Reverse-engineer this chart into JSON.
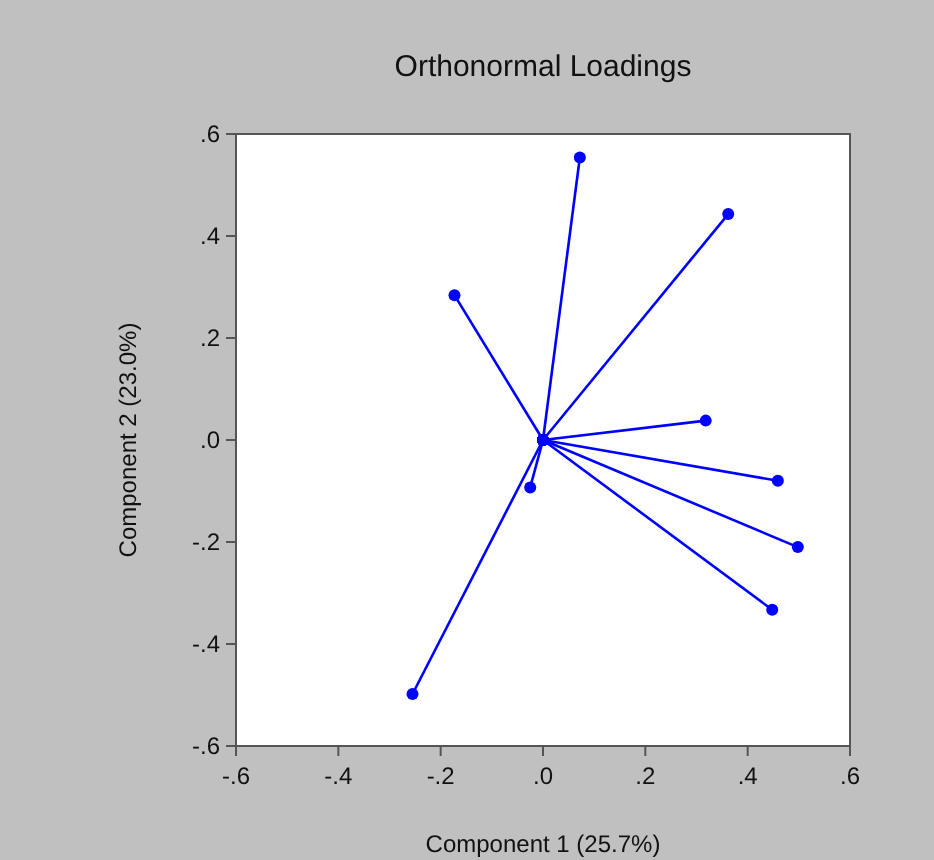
{
  "chart_data": {
    "type": "line",
    "title": "Orthonormal Loadings",
    "xlabel": "Component 1 (25.7%)",
    "ylabel": "Component 2 (23.0%)",
    "xlim": [
      -0.6,
      0.6
    ],
    "ylim": [
      -0.6,
      0.6
    ],
    "xticks": [
      {
        "value": -0.6,
        "label": "-.6"
      },
      {
        "value": -0.4,
        "label": "-.4"
      },
      {
        "value": -0.2,
        "label": "-.2"
      },
      {
        "value": 0,
        "label": ".0"
      },
      {
        "value": 0.2,
        "label": ".2"
      },
      {
        "value": 0.4,
        "label": ".4"
      },
      {
        "value": 0.6,
        "label": ".6"
      }
    ],
    "yticks": [
      {
        "value": -0.6,
        "label": "-.6"
      },
      {
        "value": -0.4,
        "label": "-.4"
      },
      {
        "value": -0.2,
        "label": "-.2"
      },
      {
        "value": 0,
        "label": ".0"
      },
      {
        "value": 0.2,
        "label": ".2"
      },
      {
        "value": 0.4,
        "label": ".4"
      },
      {
        "value": 0.6,
        "label": ".6"
      }
    ],
    "grid": false,
    "marker": "circle",
    "line_style": "solid",
    "series": [
      {
        "color": "#0000ff",
        "x": [
          0,
          0.072
        ],
        "values": [
          0,
          0.554
        ]
      },
      {
        "color": "#0000ff",
        "x": [
          0,
          0.362
        ],
        "values": [
          0,
          0.443
        ]
      },
      {
        "color": "#0000ff",
        "x": [
          0,
          -0.173
        ],
        "values": [
          0,
          0.284
        ]
      },
      {
        "color": "#0000ff",
        "x": [
          0,
          0.318
        ],
        "values": [
          0,
          0.038
        ]
      },
      {
        "color": "#0000ff",
        "x": [
          0,
          -0.025
        ],
        "values": [
          0,
          -0.093
        ]
      },
      {
        "color": "#0000ff",
        "x": [
          0,
          0.459
        ],
        "values": [
          0,
          -0.08
        ]
      },
      {
        "color": "#0000ff",
        "x": [
          0,
          0.498
        ],
        "values": [
          0,
          -0.21
        ]
      },
      {
        "color": "#0000ff",
        "x": [
          0,
          0.448
        ],
        "values": [
          0,
          -0.333
        ]
      },
      {
        "color": "#0000ff",
        "x": [
          0,
          -0.255
        ],
        "values": [
          0,
          -0.498
        ]
      }
    ]
  }
}
